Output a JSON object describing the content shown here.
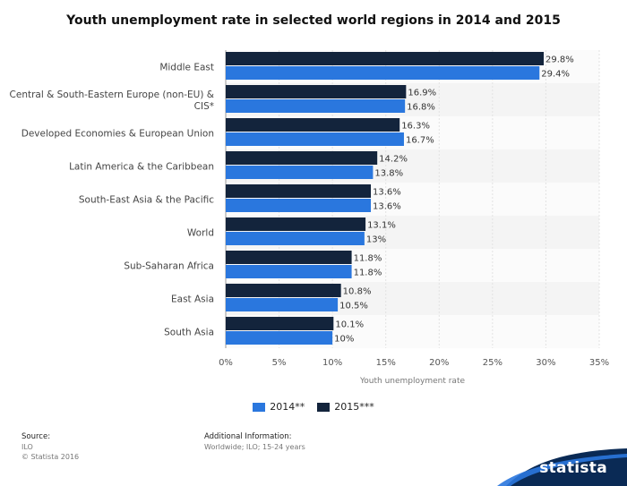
{
  "chart_data": {
    "type": "bar",
    "orientation": "horizontal",
    "title": "Youth unemployment rate in selected world regions in 2014 and 2015",
    "xlabel": "Youth unemployment rate",
    "categories": [
      "Middle East",
      "Central & South-Eastern Europe (non-EU) & CIS*",
      "Developed Economies & European Union",
      "Latin America & the Caribbean",
      "South-East Asia & the Pacific",
      "World",
      "Sub-Saharan Africa",
      "East Asia",
      "South Asia"
    ],
    "series": [
      {
        "name": "2015***",
        "color": "#13243c",
        "values": [
          29.8,
          16.9,
          16.3,
          14.2,
          13.6,
          13.1,
          11.8,
          10.8,
          10.1
        ],
        "labels": [
          "29.8%",
          "16.9%",
          "16.3%",
          "14.2%",
          "13.6%",
          "13.1%",
          "11.8%",
          "10.8%",
          "10.1%"
        ]
      },
      {
        "name": "2014**",
        "color": "#2a77de",
        "values": [
          29.4,
          16.8,
          16.7,
          13.8,
          13.6,
          13,
          11.8,
          10.5,
          10
        ],
        "labels": [
          "29.4%",
          "16.8%",
          "16.7%",
          "13.8%",
          "13.6%",
          "13%",
          "11.8%",
          "10.5%",
          "10%"
        ]
      }
    ],
    "xlim": [
      0,
      35
    ],
    "xticks": [
      "0%",
      "5%",
      "10%",
      "15%",
      "20%",
      "25%",
      "30%",
      "35%"
    ],
    "legend_position": "bottom",
    "grid": true
  },
  "legend": [
    {
      "label": "2014**",
      "color": "#2a77de"
    },
    {
      "label": "2015***",
      "color": "#13243c"
    }
  ],
  "footer": {
    "source_head": "Source:",
    "source_lines": [
      "ILO",
      "© Statista 2016"
    ],
    "info_head": "Additional Information:",
    "info_lines": [
      "Worldwide; ILO; 15-24 years"
    ]
  },
  "brand": {
    "name": "statista",
    "color": "#0a2a55"
  }
}
